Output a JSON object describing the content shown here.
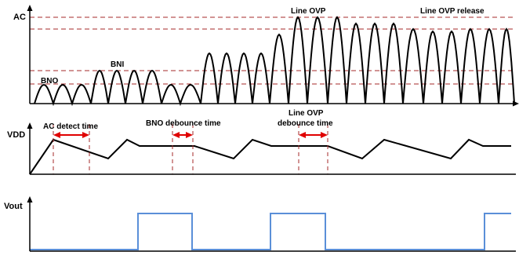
{
  "labels": {
    "ac_axis": "AC",
    "vdd_axis": "VDD",
    "vout_axis": "Vout",
    "bno": "BNO",
    "bni": "BNI",
    "line_ovp": "Line OVP",
    "line_ovp_release": "Line OVP release",
    "ac_detect_time": "AC detect time",
    "bno_debounce_time": "BNO debounce time",
    "line_ovp_debounce_line1": "Line OVP",
    "line_ovp_debounce_line2": "debounce time"
  },
  "colors": {
    "trace": "#000000",
    "threshold": "#a52a2a",
    "marker": "#e00000",
    "vout": "#5a8fd8"
  }
}
